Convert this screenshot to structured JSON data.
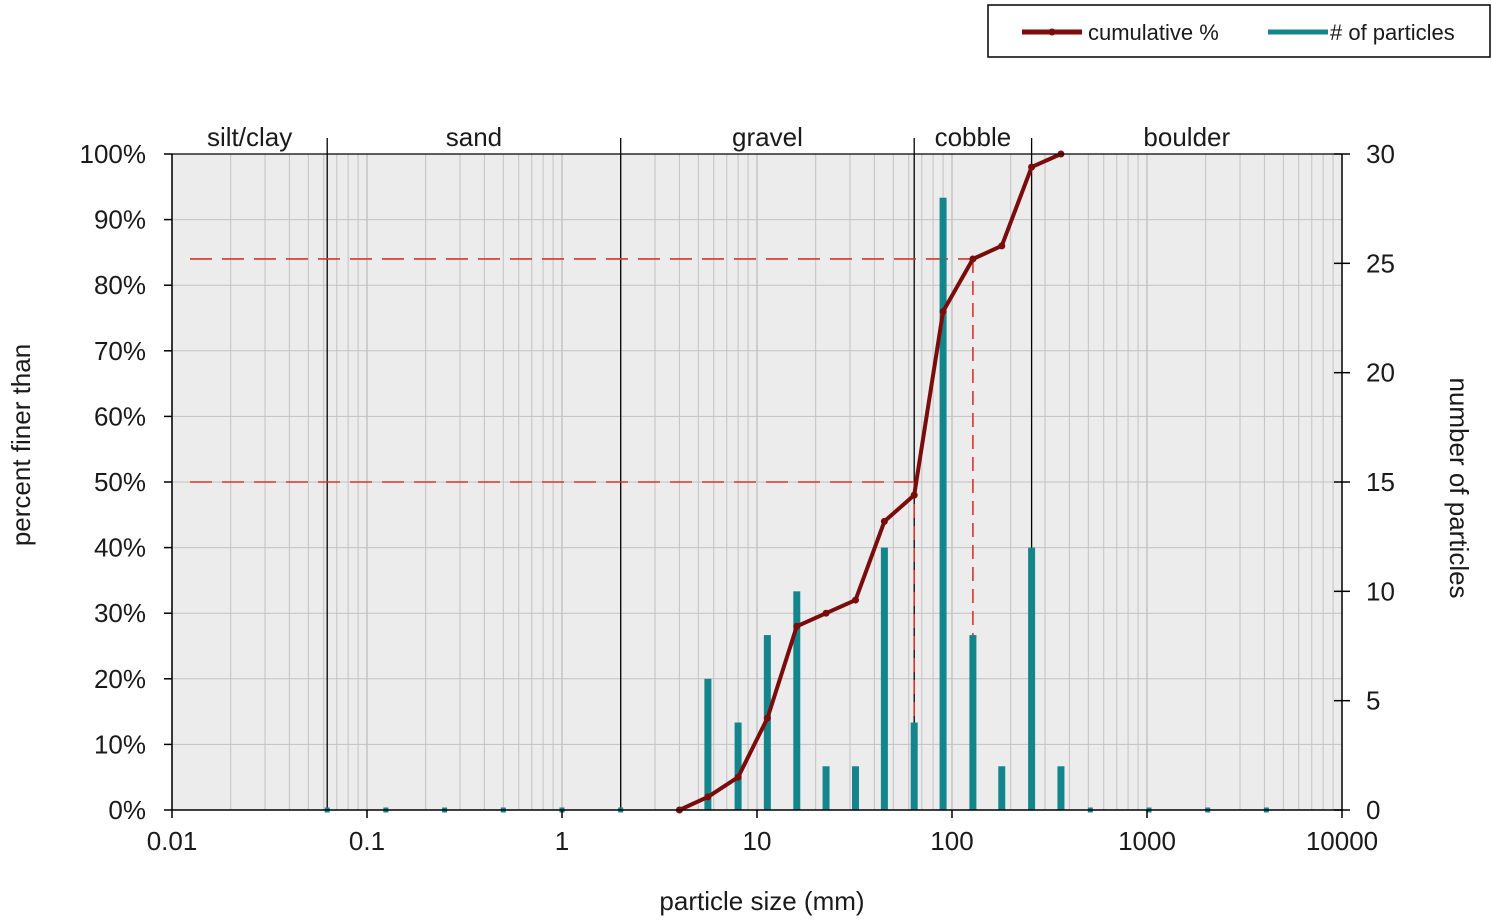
{
  "chart_data": {
    "type": "line",
    "x_scale": "log",
    "xlim": [
      0.01,
      10000
    ],
    "xlabel": "particle size (mm)",
    "x_ticks": [
      "0.01",
      "0.1",
      "1",
      "10",
      "100",
      "1000",
      "10000"
    ],
    "x_tick_values": [
      0.01,
      0.1,
      1,
      10,
      100,
      1000,
      10000
    ],
    "ylabel": "percent finer than",
    "ylim": [
      0,
      100
    ],
    "y_ticks": [
      "0%",
      "10%",
      "20%",
      "30%",
      "40%",
      "50%",
      "60%",
      "70%",
      "80%",
      "90%",
      "100%"
    ],
    "y_tick_values": [
      0,
      10,
      20,
      30,
      40,
      50,
      60,
      70,
      80,
      90,
      100
    ],
    "y2label": "number of particles",
    "y2lim": [
      0,
      30
    ],
    "y2_ticks": [
      "0",
      "5",
      "10",
      "15",
      "20",
      "25",
      "30"
    ],
    "y2_tick_values": [
      0,
      5,
      10,
      15,
      20,
      25,
      30
    ],
    "grid": true,
    "legend_position": "top-right",
    "legend": [
      "cumulative %",
      "# of particles"
    ],
    "colors": {
      "cumulative": "#7b0c0c",
      "particles": "#14868b",
      "reference": "#d9342b",
      "plot_bg": "#ececec",
      "grid": "#c2c2c2"
    },
    "size_classes": [
      {
        "label": "silt/clay",
        "from": 0.01,
        "to": 0.0625
      },
      {
        "label": "sand",
        "from": 0.0625,
        "to": 2
      },
      {
        "label": "gravel",
        "from": 2,
        "to": 64
      },
      {
        "label": "cobble",
        "from": 64,
        "to": 256
      },
      {
        "label": "boulder",
        "from": 256,
        "to": 10000
      }
    ],
    "series": [
      {
        "name": "cumulative %",
        "type": "line",
        "axis": "left",
        "x": [
          4,
          5.6,
          8,
          11.3,
          16,
          22.6,
          32,
          45,
          64,
          90,
          128,
          180,
          256,
          362
        ],
        "values": [
          0,
          2,
          5,
          14,
          28,
          30,
          32,
          44,
          48,
          76,
          84,
          86,
          98,
          100
        ]
      },
      {
        "name": "# of particles",
        "type": "bar",
        "axis": "right",
        "x": [
          0.0625,
          0.125,
          0.25,
          0.5,
          1,
          2,
          4,
          5.6,
          8,
          11.3,
          16,
          22.6,
          32,
          45,
          64,
          90,
          128,
          180,
          256,
          362,
          512,
          1024,
          2048,
          4096
        ],
        "values": [
          0,
          0,
          0,
          0,
          0,
          0,
          0,
          6,
          4,
          8,
          10,
          2,
          2,
          12,
          4,
          28,
          8,
          2,
          12,
          2,
          0,
          0,
          0,
          0
        ]
      }
    ],
    "reference_lines": [
      {
        "y": 50,
        "x": 64
      },
      {
        "y": 84,
        "x": 128
      }
    ]
  }
}
